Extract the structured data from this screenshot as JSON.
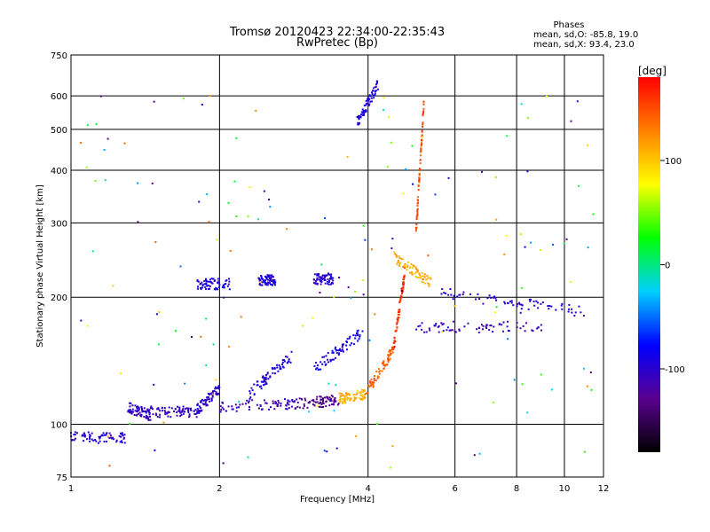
{
  "chart_data": {
    "type": "scatter",
    "title": "Tromsø 20120423 22:34:00-22:35:43",
    "subtitle": "RwPretec (Bp)",
    "phases": {
      "title": "Phases",
      "line_o": "mean, sd,O: -85.8, 19.0",
      "line_x": "mean, sd,X:  93.4, 23.0"
    },
    "xlabel": "Frequency [MHz]",
    "ylabel": "Stationary phase Virtual Height [km]",
    "xscale": "log",
    "yscale": "log",
    "xlim": [
      1,
      12
    ],
    "ylim": [
      75,
      750
    ],
    "x_ticks": [
      1,
      2,
      4,
      6,
      8,
      10,
      12
    ],
    "x_tick_labels": [
      "1",
      "2",
      "4",
      "6",
      "8",
      "10",
      "12"
    ],
    "y_ticks": [
      75,
      100,
      200,
      300,
      400,
      500,
      600,
      750
    ],
    "y_tick_labels": [
      "75",
      "100",
      "200",
      "300",
      "400",
      "500",
      "600",
      "750"
    ],
    "x_gridlines": [
      2,
      4,
      6,
      8,
      10
    ],
    "y_gridlines": [
      100,
      200,
      300,
      400,
      500,
      600
    ],
    "grid": true,
    "colorbar": {
      "label": "[deg]",
      "ticks": [
        100,
        0,
        -100
      ],
      "tick_labels": [
        "100",
        "0",
        "-100"
      ],
      "range": [
        -180,
        180
      ],
      "colors": [
        "#000000",
        "#5a0090",
        "#0000ff",
        "#00d0ff",
        "#00ff00",
        "#ffff00",
        "#ff8000",
        "#ff0000"
      ]
    },
    "point_sets": [
      {
        "x": [
          1.0,
          1.3
        ],
        "y": [
          93,
          93
        ],
        "phase": -100
      },
      {
        "x": [
          1.3,
          1.45
        ],
        "y": [
          110,
          105
        ],
        "phase": -105
      },
      {
        "x": [
          1.45,
          1.8
        ],
        "y": [
          107,
          107
        ],
        "phase": -105
      },
      {
        "x": [
          1.8,
          2.0
        ],
        "y": [
          108,
          122
        ],
        "phase": -100
      },
      {
        "x": [
          2.0,
          2.9
        ],
        "y": [
          110,
          112
        ],
        "phase": -110
      },
      {
        "x": [
          2.9,
          3.5
        ],
        "y": [
          112,
          114
        ],
        "phase": -130
      },
      {
        "x": [
          3.5,
          3.95
        ],
        "y": [
          115,
          118
        ],
        "phase": 110
      },
      {
        "x": [
          3.95,
          4.5
        ],
        "y": [
          118,
          150
        ],
        "phase": 140
      },
      {
        "x": [
          4.5,
          4.75
        ],
        "y": [
          150,
          230
        ],
        "phase": 160
      },
      {
        "x": [
          4.5,
          5.4
        ],
        "y": [
          250,
          215
        ],
        "phase": 110
      },
      {
        "x": [
          5.0,
          9.0
        ],
        "y": [
          170,
          170
        ],
        "phase": -110
      },
      {
        "x": [
          5.5,
          11.0
        ],
        "y": [
          205,
          185
        ],
        "phase": -100
      },
      {
        "x": [
          3.8,
          4.2
        ],
        "y": [
          520,
          640
        ],
        "phase": -95
      },
      {
        "x": [
          1.8,
          2.1
        ],
        "y": [
          215,
          215
        ],
        "phase": -95
      },
      {
        "x": [
          2.4,
          2.6
        ],
        "y": [
          220,
          220
        ],
        "phase": -95
      },
      {
        "x": [
          3.1,
          3.4
        ],
        "y": [
          221,
          221
        ],
        "phase": -100
      },
      {
        "x": [
          3.1,
          3.9
        ],
        "y": [
          135,
          165
        ],
        "phase": -90
      },
      {
        "x": [
          5.0,
          5.2
        ],
        "y": [
          280,
          600
        ],
        "phase": 150
      },
      {
        "x": [
          2.3,
          2.8
        ],
        "y": [
          118,
          145
        ],
        "phase": -95
      },
      {
        "x": [
          1.0,
          11.5
        ],
        "y": [
          78,
          600
        ],
        "phase": 0
      }
    ]
  }
}
